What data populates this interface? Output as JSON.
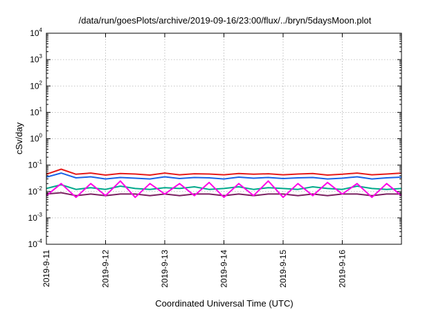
{
  "chart_data": {
    "type": "line",
    "title": "/data/run/goesPlots/archive/2019-09-16/23:00/flux/../bryn/5daysMoon.plot",
    "xlabel": "Coordinated Universal Time (UTC)",
    "ylabel": "cSv/day",
    "yscale": "log",
    "ylim": [
      0.0001,
      10000
    ],
    "grid": true,
    "x_start": "2019-09-11",
    "x_end": "2019-09-17",
    "x_ticks": [
      "2019-9-11",
      "2019-9-12",
      "2019-9-13",
      "2019-9-14",
      "2019-9-15",
      "2019-9-16"
    ],
    "y_ticks": [
      {
        "value": 0.0001,
        "base": "10",
        "exp": "-4"
      },
      {
        "value": 0.001,
        "base": "10",
        "exp": "-3"
      },
      {
        "value": 0.01,
        "base": "10",
        "exp": "-2"
      },
      {
        "value": 0.1,
        "base": "10",
        "exp": "-1"
      },
      {
        "value": 1,
        "base": "10",
        "exp": "0"
      },
      {
        "value": 10,
        "base": "10",
        "exp": "1"
      },
      {
        "value": 100,
        "base": "10",
        "exp": "2"
      },
      {
        "value": 1000,
        "base": "10",
        "exp": "3"
      },
      {
        "value": 10000,
        "base": "10",
        "exp": "4"
      }
    ],
    "series": [
      {
        "color": "#7a2060",
        "x": [
          "2019-09-11 00:00",
          "2019-09-11 06:00",
          "2019-09-11 12:00",
          "2019-09-11 18:00",
          "2019-09-12 00:00",
          "2019-09-12 06:00",
          "2019-09-12 12:00",
          "2019-09-12 18:00",
          "2019-09-13 00:00",
          "2019-09-13 06:00",
          "2019-09-13 12:00",
          "2019-09-13 18:00",
          "2019-09-14 00:00",
          "2019-09-14 06:00",
          "2019-09-14 12:00",
          "2019-09-14 18:00",
          "2019-09-15 00:00",
          "2019-09-15 06:00",
          "2019-09-15 12:00",
          "2019-09-15 18:00",
          "2019-09-16 00:00",
          "2019-09-16 06:00",
          "2019-09-16 12:00",
          "2019-09-16 18:00",
          "2019-09-17 00:00"
        ],
        "y": [
          0.008,
          0.009,
          0.007,
          0.008,
          0.007,
          0.008,
          0.008,
          0.007,
          0.008,
          0.007,
          0.008,
          0.008,
          0.007,
          0.008,
          0.007,
          0.008,
          0.008,
          0.007,
          0.008,
          0.007,
          0.008,
          0.008,
          0.007,
          0.008,
          0.008
        ]
      },
      {
        "color": "#00a88a",
        "x": [
          "2019-09-11 00:00",
          "2019-09-11 06:00",
          "2019-09-11 12:00",
          "2019-09-11 18:00",
          "2019-09-12 00:00",
          "2019-09-12 06:00",
          "2019-09-12 12:00",
          "2019-09-12 18:00",
          "2019-09-13 00:00",
          "2019-09-13 06:00",
          "2019-09-13 12:00",
          "2019-09-13 18:00",
          "2019-09-14 00:00",
          "2019-09-14 06:00",
          "2019-09-14 12:00",
          "2019-09-14 18:00",
          "2019-09-15 00:00",
          "2019-09-15 06:00",
          "2019-09-15 12:00",
          "2019-09-15 18:00",
          "2019-09-16 00:00",
          "2019-09-16 06:00",
          "2019-09-16 12:00",
          "2019-09-16 18:00",
          "2019-09-17 00:00"
        ],
        "y": [
          0.013,
          0.018,
          0.012,
          0.014,
          0.012,
          0.016,
          0.013,
          0.012,
          0.014,
          0.013,
          0.015,
          0.012,
          0.013,
          0.015,
          0.012,
          0.014,
          0.013,
          0.012,
          0.015,
          0.013,
          0.012,
          0.016,
          0.013,
          0.012,
          0.013
        ]
      },
      {
        "color": "#1a62e6",
        "x": [
          "2019-09-11 00:00",
          "2019-09-11 06:00",
          "2019-09-11 12:00",
          "2019-09-11 18:00",
          "2019-09-12 00:00",
          "2019-09-12 06:00",
          "2019-09-12 12:00",
          "2019-09-12 18:00",
          "2019-09-13 00:00",
          "2019-09-13 06:00",
          "2019-09-13 12:00",
          "2019-09-13 18:00",
          "2019-09-14 00:00",
          "2019-09-14 06:00",
          "2019-09-14 12:00",
          "2019-09-14 18:00",
          "2019-09-15 00:00",
          "2019-09-15 06:00",
          "2019-09-15 12:00",
          "2019-09-15 18:00",
          "2019-09-16 00:00",
          "2019-09-16 06:00",
          "2019-09-16 12:00",
          "2019-09-16 18:00",
          "2019-09-17 00:00"
        ],
        "y": [
          0.035,
          0.05,
          0.033,
          0.036,
          0.03,
          0.034,
          0.032,
          0.03,
          0.036,
          0.031,
          0.034,
          0.033,
          0.03,
          0.035,
          0.032,
          0.034,
          0.031,
          0.033,
          0.034,
          0.03,
          0.032,
          0.036,
          0.03,
          0.033,
          0.035
        ]
      },
      {
        "color": "#ff00e6",
        "x": [
          "2019-09-11 00:00",
          "2019-09-11 06:00",
          "2019-09-11 12:00",
          "2019-09-11 18:00",
          "2019-09-12 00:00",
          "2019-09-12 06:00",
          "2019-09-12 12:00",
          "2019-09-12 18:00",
          "2019-09-13 00:00",
          "2019-09-13 06:00",
          "2019-09-13 12:00",
          "2019-09-13 18:00",
          "2019-09-14 00:00",
          "2019-09-14 06:00",
          "2019-09-14 12:00",
          "2019-09-14 18:00",
          "2019-09-15 00:00",
          "2019-09-15 06:00",
          "2019-09-15 12:00",
          "2019-09-15 18:00",
          "2019-09-16 00:00",
          "2019-09-16 06:00",
          "2019-09-16 12:00",
          "2019-09-16 18:00",
          "2019-09-17 00:00"
        ],
        "y": [
          0.007,
          0.02,
          0.006,
          0.02,
          0.007,
          0.025,
          0.006,
          0.02,
          0.008,
          0.02,
          0.007,
          0.022,
          0.006,
          0.02,
          0.007,
          0.025,
          0.006,
          0.02,
          0.007,
          0.022,
          0.008,
          0.02,
          0.006,
          0.02,
          0.007
        ]
      },
      {
        "color": "#e61a1a",
        "x": [
          "2019-09-11 00:00",
          "2019-09-11 06:00",
          "2019-09-11 12:00",
          "2019-09-11 18:00",
          "2019-09-12 00:00",
          "2019-09-12 06:00",
          "2019-09-12 12:00",
          "2019-09-12 18:00",
          "2019-09-13 00:00",
          "2019-09-13 06:00",
          "2019-09-13 12:00",
          "2019-09-13 18:00",
          "2019-09-14 00:00",
          "2019-09-14 06:00",
          "2019-09-14 12:00",
          "2019-09-14 18:00",
          "2019-09-15 00:00",
          "2019-09-15 06:00",
          "2019-09-15 12:00",
          "2019-09-15 18:00",
          "2019-09-16 00:00",
          "2019-09-16 06:00",
          "2019-09-16 12:00",
          "2019-09-16 18:00",
          "2019-09-17 00:00"
        ],
        "y": [
          0.045,
          0.07,
          0.045,
          0.05,
          0.042,
          0.048,
          0.046,
          0.042,
          0.05,
          0.043,
          0.047,
          0.046,
          0.043,
          0.048,
          0.045,
          0.047,
          0.043,
          0.046,
          0.048,
          0.042,
          0.045,
          0.05,
          0.043,
          0.046,
          0.05
        ]
      }
    ]
  }
}
